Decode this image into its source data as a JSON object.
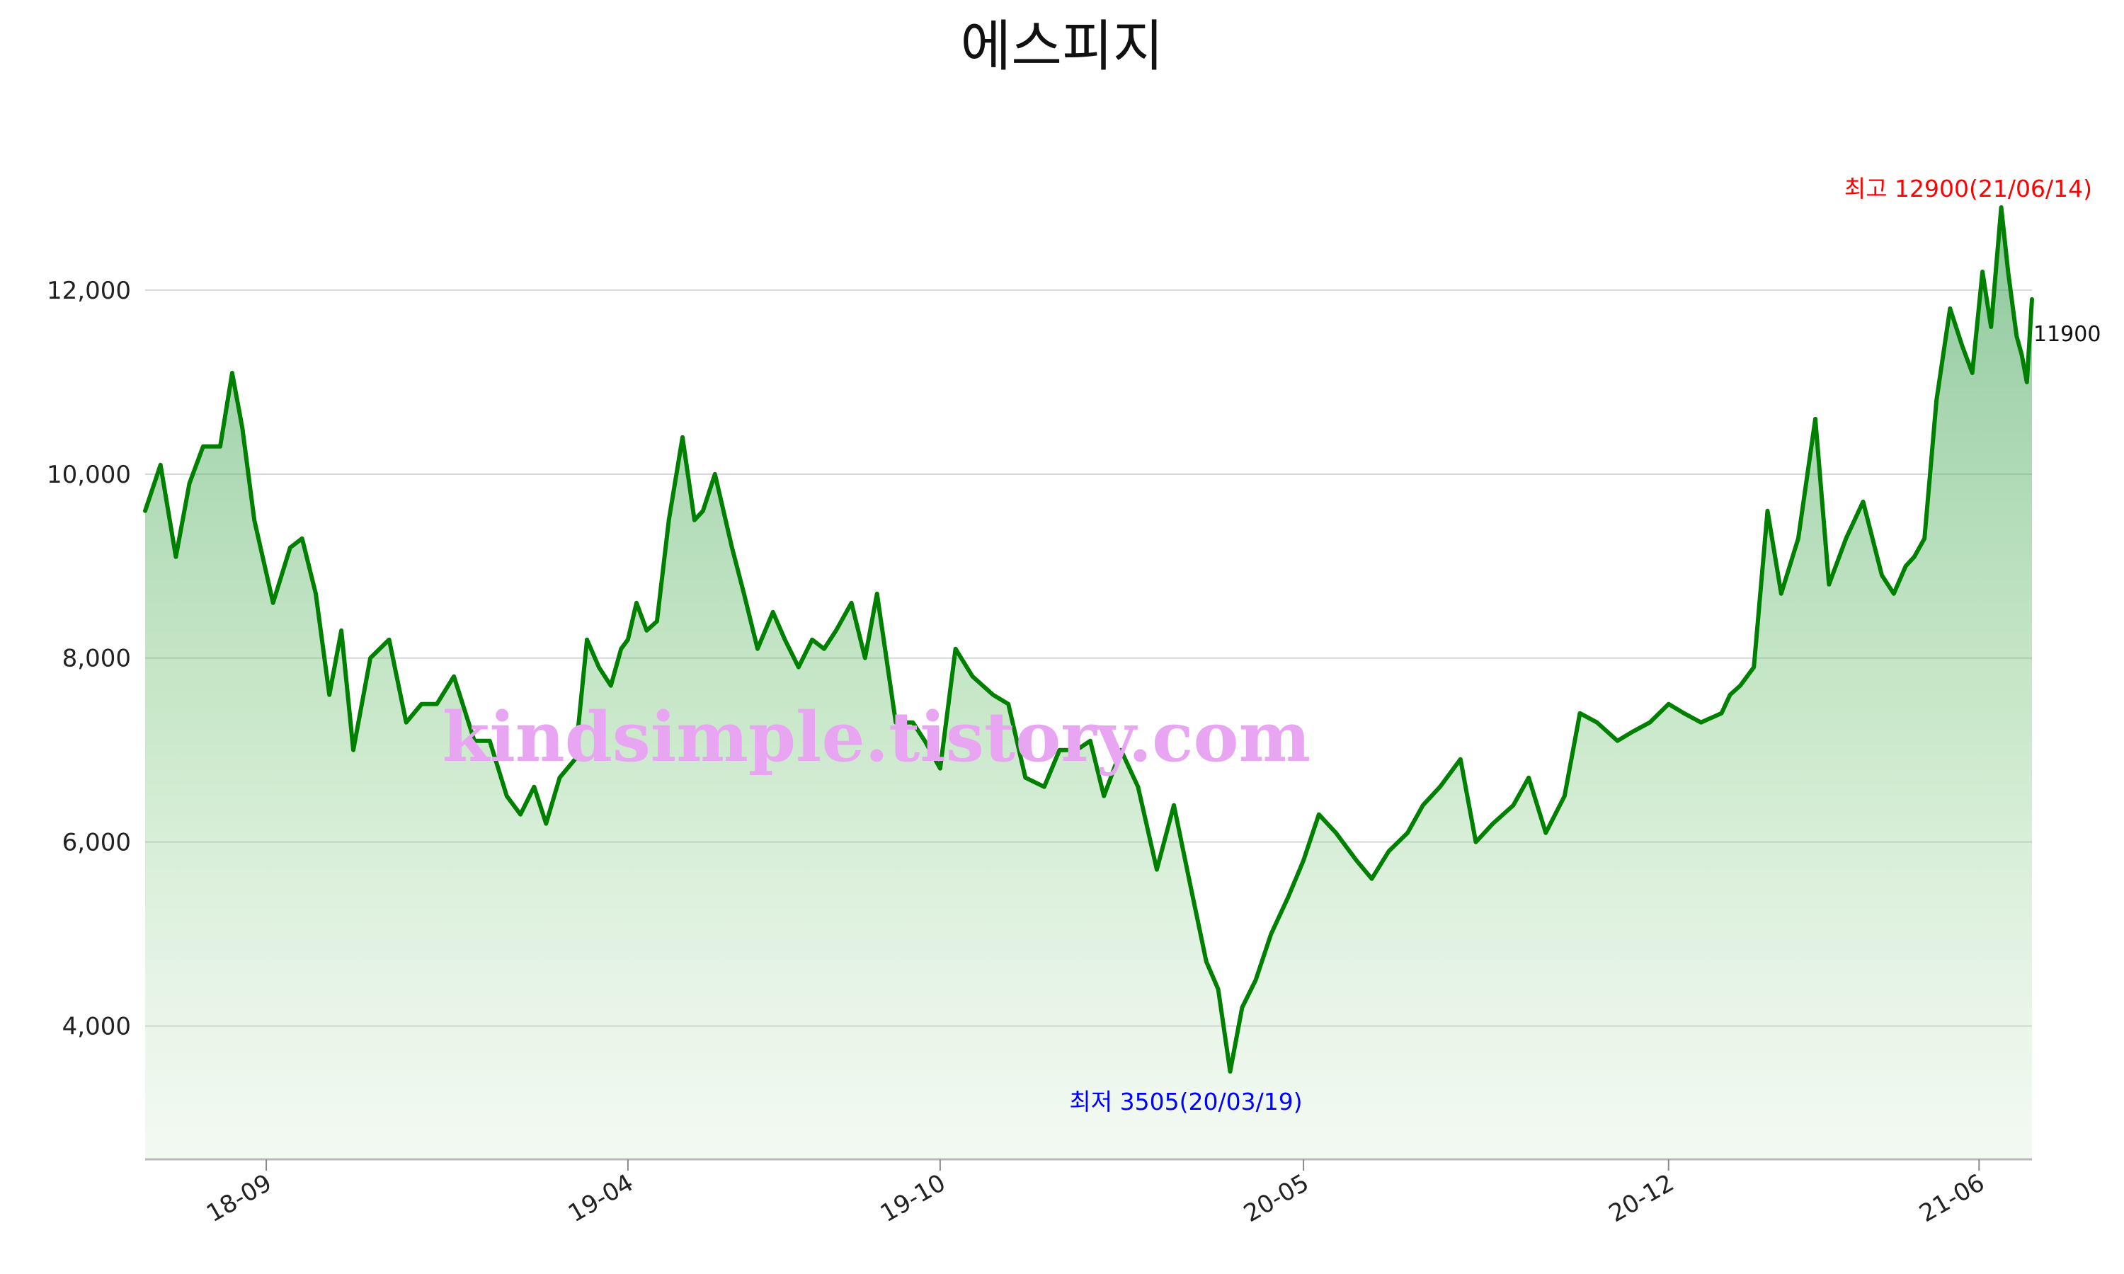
{
  "chart_data": {
    "type": "area",
    "title": "에스피지",
    "xlabel": "",
    "ylabel": "",
    "ylim": [
      2550,
      14000
    ],
    "x_range": [
      "2018-06-22",
      "2021-07-02"
    ],
    "y_ticks": [
      4000,
      6000,
      8000,
      10000,
      12000
    ],
    "y_tick_labels": [
      "4,000",
      "6,000",
      "8,000",
      "10,000",
      "12,000"
    ],
    "x_ticks": [
      {
        "date": "2018-09-01",
        "label": "18-09"
      },
      {
        "date": "2019-04-01",
        "label": "19-04"
      },
      {
        "date": "2019-10-01",
        "label": "19-10"
      },
      {
        "date": "2020-05-01",
        "label": "20-05"
      },
      {
        "date": "2020-12-01",
        "label": "20-12"
      },
      {
        "date": "2021-06-01",
        "label": "21-06"
      }
    ],
    "grid": true,
    "line_color": "#008000",
    "fill_color": "#6fbf73",
    "series": [
      {
        "x": [
          "2018-06-22",
          "2018-07-01",
          "2018-07-10",
          "2018-07-18",
          "2018-07-26",
          "2018-08-05",
          "2018-08-12",
          "2018-08-18",
          "2018-08-25",
          "2018-09-05",
          "2018-09-15",
          "2018-09-22",
          "2018-09-30",
          "2018-10-08",
          "2018-10-15",
          "2018-10-22",
          "2018-11-01",
          "2018-11-12",
          "2018-11-22",
          "2018-12-01",
          "2018-12-10",
          "2018-12-20",
          "2019-01-01",
          "2019-01-10",
          "2019-01-20",
          "2019-01-28",
          "2019-02-05",
          "2019-02-12",
          "2019-02-20",
          "2019-03-01",
          "2019-03-08",
          "2019-03-15",
          "2019-03-22",
          "2019-03-28",
          "2019-04-01",
          "2019-04-06",
          "2019-04-12",
          "2019-04-18",
          "2019-04-25",
          "2019-05-03",
          "2019-05-10",
          "2019-05-15",
          "2019-05-22",
          "2019-06-01",
          "2019-06-08",
          "2019-06-16",
          "2019-06-25",
          "2019-07-02",
          "2019-07-10",
          "2019-07-18",
          "2019-07-25",
          "2019-08-01",
          "2019-08-10",
          "2019-08-18",
          "2019-08-25",
          "2019-09-05",
          "2019-09-15",
          "2019-09-22",
          "2019-10-01",
          "2019-10-10",
          "2019-10-20",
          "2019-11-01",
          "2019-11-10",
          "2019-11-20",
          "2019-12-01",
          "2019-12-10",
          "2019-12-20",
          "2019-12-28",
          "2020-01-05",
          "2020-01-15",
          "2020-01-25",
          "2020-02-05",
          "2020-02-15",
          "2020-02-25",
          "2020-03-05",
          "2020-03-12",
          "2020-03-19",
          "2020-03-26",
          "2020-04-03",
          "2020-04-12",
          "2020-04-22",
          "2020-05-01",
          "2020-05-10",
          "2020-05-20",
          "2020-06-01",
          "2020-06-10",
          "2020-06-20",
          "2020-07-01",
          "2020-07-10",
          "2020-07-20",
          "2020-08-01",
          "2020-08-10",
          "2020-08-20",
          "2020-09-01",
          "2020-09-10",
          "2020-09-20",
          "2020-10-01",
          "2020-10-10",
          "2020-10-20",
          "2020-11-01",
          "2020-11-10",
          "2020-11-20",
          "2020-12-01",
          "2020-12-10",
          "2020-12-20",
          "2021-01-01",
          "2021-01-06",
          "2021-01-12",
          "2021-01-20",
          "2021-01-28",
          "2021-02-05",
          "2021-02-15",
          "2021-02-25",
          "2021-03-05",
          "2021-03-15",
          "2021-03-25",
          "2021-04-05",
          "2021-04-12",
          "2021-04-19",
          "2021-04-24",
          "2021-04-30",
          "2021-05-07",
          "2021-05-15",
          "2021-05-22",
          "2021-05-28",
          "2021-06-03",
          "2021-06-08",
          "2021-06-14",
          "2021-06-18",
          "2021-06-23",
          "2021-06-26",
          "2021-06-29",
          "2021-07-02"
        ],
        "y": [
          9600,
          10100,
          9100,
          9900,
          10300,
          10300,
          11100,
          10500,
          9500,
          8600,
          9200,
          9300,
          8700,
          7600,
          8300,
          7000,
          8000,
          8200,
          7300,
          7500,
          7500,
          7800,
          7100,
          7100,
          6500,
          6300,
          6600,
          6200,
          6700,
          6900,
          8200,
          7900,
          7700,
          8100,
          8200,
          8600,
          8300,
          8400,
          9500,
          10400,
          9500,
          9600,
          10000,
          9200,
          8700,
          8100,
          8500,
          8200,
          7900,
          8200,
          8100,
          8300,
          8600,
          8000,
          8700,
          7300,
          7300,
          7100,
          6800,
          8100,
          7800,
          7600,
          7500,
          6700,
          6600,
          7000,
          7000,
          7100,
          6500,
          7000,
          6600,
          5700,
          6400,
          5500,
          4700,
          4400,
          3505,
          4200,
          4500,
          5000,
          5400,
          5800,
          6300,
          6100,
          5800,
          5600,
          5900,
          6100,
          6400,
          6600,
          6900,
          6000,
          6200,
          6400,
          6700,
          6100,
          6500,
          7400,
          7300,
          7100,
          7200,
          7300,
          7500,
          7400,
          7300,
          7400,
          7600,
          7700,
          7900,
          9600,
          8700,
          9300,
          10600,
          8800,
          9300,
          9700,
          8900,
          8700,
          9000,
          9100,
          9300,
          10800,
          11800,
          11400,
          11100,
          12200,
          11600,
          12900,
          12200,
          11500,
          11300,
          11000,
          11900
        ]
      }
    ],
    "annotations": {
      "high": {
        "text": "최고 12900(21/06/14)",
        "color": "#ff0000",
        "date": "2021-06-14",
        "value": 12900
      },
      "low": {
        "text": "최저 3505(20/03/19)",
        "color": "#0000ff",
        "date": "2020-03-19",
        "value": 3505
      },
      "last": {
        "text": "11900",
        "value": 11900
      }
    }
  },
  "watermark": {
    "text": "kindsimple.tistory.com",
    "color": "#e8a6f2"
  }
}
